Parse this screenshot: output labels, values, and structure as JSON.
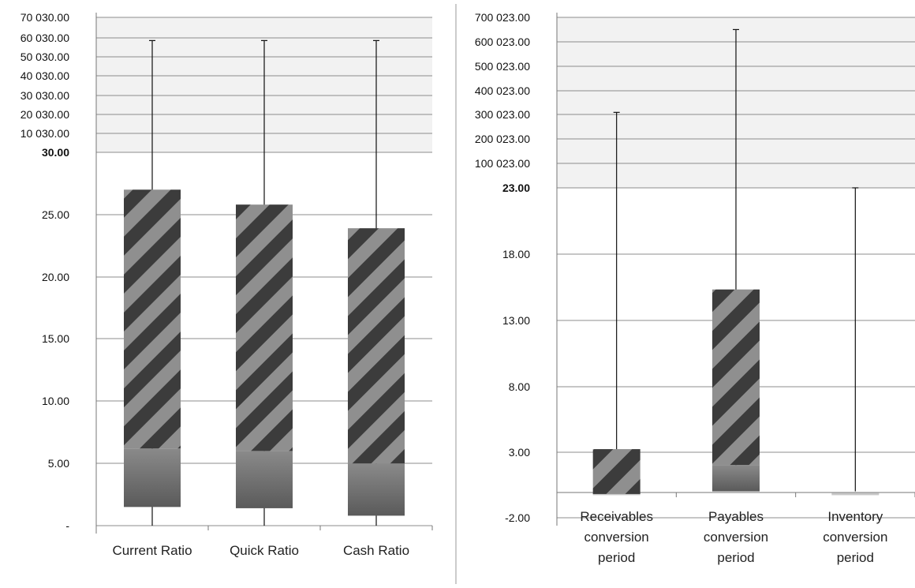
{
  "chart_data": [
    {
      "type": "bar",
      "style": "stacked box-whisker (broken y-axis)",
      "categories": [
        "Current Ratio",
        "Quick Ratio",
        "Cash Ratio"
      ],
      "y_ticks_lower": [
        "-",
        "5.00",
        "10.00",
        "15.00",
        "20.00",
        "25.00"
      ],
      "y_ticks_upper": [
        "30.00",
        "10 030.00",
        "20 030.00",
        "30 030.00",
        "40 030.00",
        "50 030.00",
        "60 030.00",
        "70 030.00"
      ],
      "lower_segment": [
        [
          1.5,
          6.2
        ],
        [
          1.4,
          6.0
        ],
        [
          0.8,
          5.0
        ]
      ],
      "upper_segment": [
        [
          6.2,
          27.0
        ],
        [
          6.0,
          25.8
        ],
        [
          5.0,
          23.9
        ]
      ],
      "whisker_low": [
        0,
        0,
        0
      ],
      "whisker_high": [
        58000,
        58000,
        58000
      ],
      "ylim_lower": [
        0,
        30
      ],
      "ylim_upper": [
        30,
        70030
      ],
      "grid": true,
      "legend": "none",
      "colors": {
        "lower": "#6e6e6e",
        "stripe_light": "#8f8f8f",
        "stripe_dark": "#3c3c3c",
        "upper_band": "#f2f2f2"
      }
    },
    {
      "type": "bar",
      "style": "stacked box-whisker (broken y-axis)",
      "categories": [
        "Receivables conversion period",
        "Payables conversion period",
        "Inventory conversion period"
      ],
      "category_lines": [
        [
          "Receivables",
          "conversion",
          "period"
        ],
        [
          "Payables",
          "conversion",
          "period"
        ],
        [
          "Inventory",
          "conversion",
          "period"
        ]
      ],
      "y_ticks_lower": [
        "-2.00",
        "3.00",
        "8.00",
        "13.00",
        "18.00",
        "23.00"
      ],
      "y_ticks_upper": [
        "23.00",
        "100 023.00",
        "200 023.00",
        "300 023.00",
        "400 023.00",
        "500 023.00",
        "600 023.00",
        "700 023.00"
      ],
      "lower_segment": [
        [
          -0.2,
          -0.2
        ],
        [
          0,
          2.0
        ],
        [
          -0.2,
          -0.2
        ]
      ],
      "upper_segment": [
        [
          -0.2,
          3.2
        ],
        [
          2.0,
          15.3
        ],
        [
          -0.2,
          -0.2
        ]
      ],
      "whisker_low": [
        0,
        0,
        0
      ],
      "whisker_high": [
        310000,
        650000,
        23
      ],
      "ylim_lower": [
        -2,
        23
      ],
      "ylim_upper": [
        23,
        700023
      ],
      "grid": true,
      "legend": "none",
      "colors": {
        "lower": "#6e6e6e",
        "stripe_light": "#8f8f8f",
        "stripe_dark": "#3c3c3c",
        "upper_band": "#f2f2f2"
      }
    }
  ]
}
